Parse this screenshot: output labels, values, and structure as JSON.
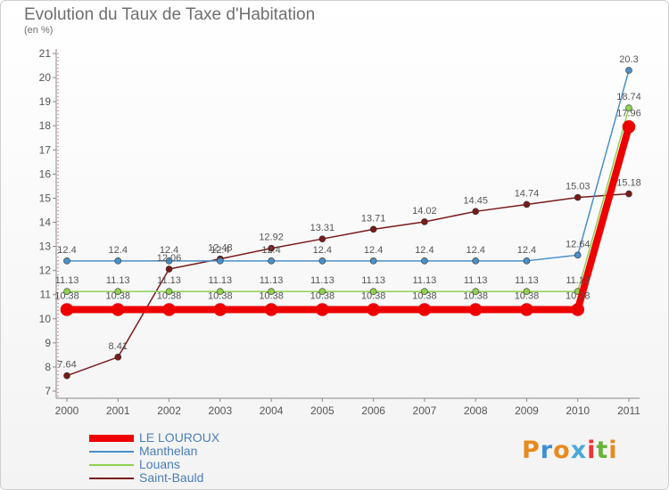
{
  "header": {
    "title": "Evolution du Taux de Taxe d'Habitation",
    "subtitle": "(en %)"
  },
  "logo": {
    "text": "Proxiti",
    "colors": [
      "#e8891e",
      "#3f8fd6",
      "#e8891e",
      "#4aa8d8",
      "#e33",
      "#69b33a",
      "#e8891e"
    ]
  },
  "chart_data": {
    "type": "line",
    "x": [
      "2000",
      "2001",
      "2002",
      "2003",
      "2004",
      "2005",
      "2006",
      "2007",
      "2008",
      "2009",
      "2010",
      "2011"
    ],
    "ylim": [
      7,
      21
    ],
    "yticks": [
      7,
      8,
      9,
      10,
      11,
      12,
      13,
      14,
      15,
      16,
      17,
      18,
      19,
      20,
      21
    ],
    "grid": false,
    "legend_position": "bottom-left",
    "series": [
      {
        "name": "Saint-Bauld",
        "color": "#7a1a1a",
        "values": [
          7.64,
          8.41,
          12.06,
          12.48,
          12.92,
          13.31,
          13.71,
          14.02,
          14.45,
          14.74,
          15.03,
          15.18
        ],
        "labels": [
          "7.64",
          "8.41",
          "12.06",
          "12.48",
          "12.92",
          "13.31",
          "13.71",
          "14.02",
          "14.45",
          "14.74",
          "15.03",
          "15.18"
        ]
      },
      {
        "name": "Louans",
        "color": "#8fd14f",
        "values": [
          11.13,
          11.13,
          11.13,
          11.13,
          11.13,
          11.13,
          11.13,
          11.13,
          11.13,
          11.13,
          11.13,
          18.74
        ],
        "labels": [
          "11.13",
          "11.13",
          "11.13",
          "11.13",
          "11.13",
          "11.13",
          "11.13",
          "11.13",
          "11.13",
          "11.13",
          "11.13",
          "18.74"
        ]
      },
      {
        "name": "Manthelan",
        "color": "#4a90c8",
        "values": [
          12.4,
          12.4,
          12.4,
          12.4,
          12.4,
          12.4,
          12.4,
          12.4,
          12.4,
          12.4,
          12.64,
          20.3
        ],
        "labels": [
          "12.4",
          "12.4",
          "12.4",
          "12.4",
          "12.4",
          "12.4",
          "12.4",
          "12.4",
          "12.4",
          "12.4",
          "12.64",
          "20.3"
        ]
      },
      {
        "name": "LE LOUROUX",
        "color": "#ee0000",
        "values": [
          10.38,
          10.38,
          10.38,
          10.38,
          10.38,
          10.38,
          10.38,
          10.38,
          10.38,
          10.38,
          10.38,
          17.96
        ],
        "labels": [
          "10.38",
          "10.38",
          "10.38",
          "10.38",
          "10.38",
          "10.38",
          "10.38",
          "10.38",
          "10.38",
          "10.38",
          "10.38",
          "17.96"
        ]
      }
    ],
    "legend": [
      "LE LOUROUX",
      "Manthelan",
      "Louans",
      "Saint-Bauld"
    ]
  }
}
